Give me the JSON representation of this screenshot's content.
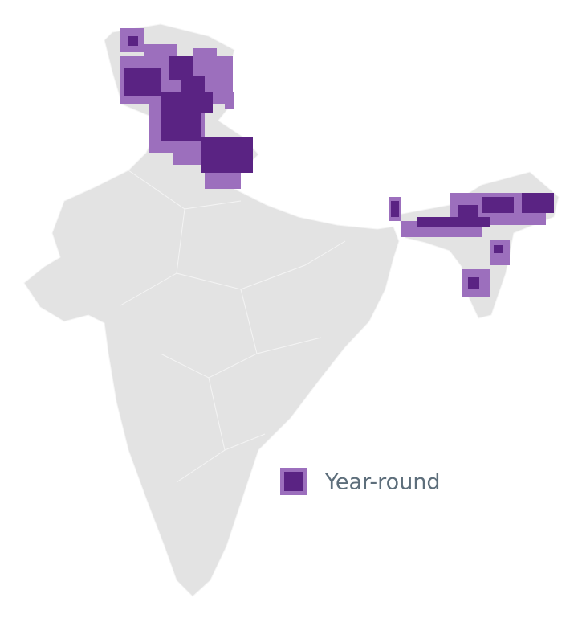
{
  "legend": {
    "label": "Year-round"
  }
}
